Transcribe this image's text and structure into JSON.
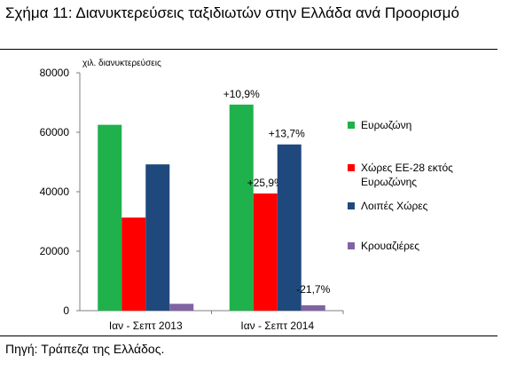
{
  "caption": "Σχήμα 11: Διανυκτερεύσεις ταξιδιωτών στην Ελλάδα ανά Προορισμό",
  "source": "Πηγή: Τράπεζα της Ελλάδος.",
  "chart_data": {
    "type": "bar",
    "ylabel": "χιλ. διανυκτερεύσεις",
    "ylim": [
      0,
      80000
    ],
    "yticks": [
      "0",
      "20000",
      "40000",
      "60000",
      "80000"
    ],
    "grid": false,
    "legend_position": "right",
    "categories": [
      "Ιαν - Σεπτ 2013",
      "Ιαν - Σεπτ 2014"
    ],
    "series": [
      {
        "name": "Ευρωζώνη",
        "color": "#1fb14c",
        "values": [
          62500,
          69300
        ],
        "labels": [
          "",
          "+10,9%"
        ]
      },
      {
        "name": "Χώρες ΕΕ-28 εκτός Ευρωζώνης",
        "color": "#ff0000",
        "values": [
          31300,
          39400
        ],
        "labels": [
          "",
          "+25,9%"
        ]
      },
      {
        "name": "Λοιπές Χώρες",
        "color": "#1f497d",
        "values": [
          49200,
          55900
        ],
        "labels": [
          "",
          "+13,7%"
        ]
      },
      {
        "name": "Κρουαζιέρες",
        "color": "#8064a2",
        "values": [
          2300,
          1800
        ],
        "labels": [
          "",
          "-21,7%"
        ]
      }
    ]
  }
}
